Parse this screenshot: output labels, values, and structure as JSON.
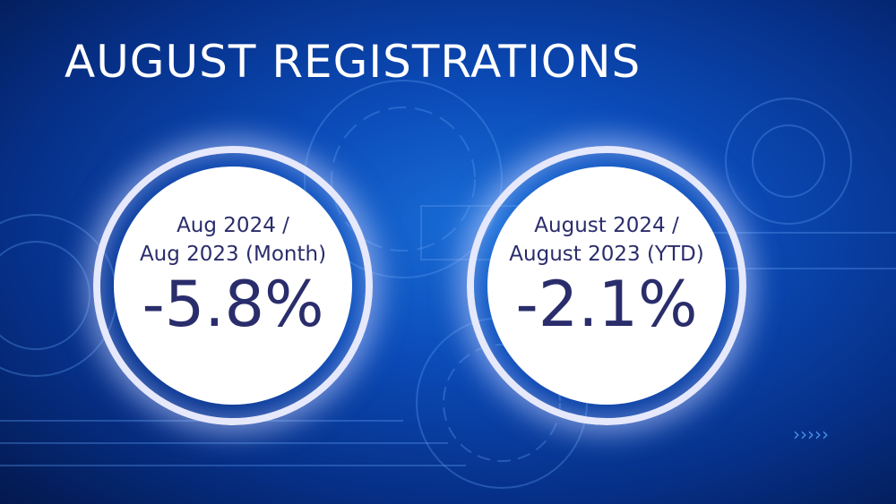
{
  "title": "AUGUST REGISTRATIONS",
  "stats": [
    {
      "line1": "Aug 2024 /",
      "line2": "Aug 2023 (Month)",
      "value": "-5.8%"
    },
    {
      "line1": "August 2024 /",
      "line2": "August 2023 (YTD)",
      "value": "-2.1%"
    }
  ],
  "colors": {
    "background": "#0b4bb8",
    "text": "#2a2d6b",
    "ring": "#e6e8fb"
  }
}
